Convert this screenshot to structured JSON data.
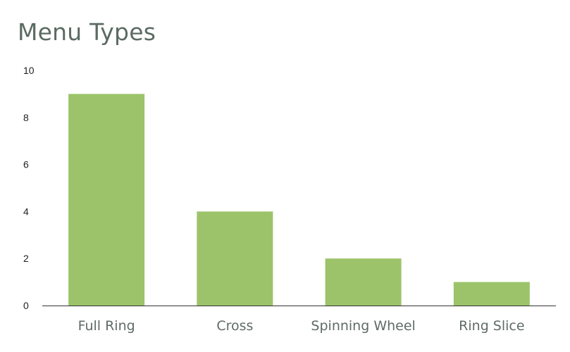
{
  "chart_data": {
    "type": "bar",
    "title": "Menu Types",
    "xlabel": "",
    "ylabel": "",
    "categories": [
      "Full Ring",
      "Cross",
      "Spinning Wheel",
      "Ring Slice"
    ],
    "values": [
      9,
      4,
      2,
      1
    ],
    "ylim": [
      0,
      10
    ],
    "yticks": [
      0,
      2,
      4,
      6,
      8,
      10
    ],
    "grid": false,
    "legend": "none",
    "bar_color": "#9cc36a",
    "axis_color": "#333333"
  }
}
